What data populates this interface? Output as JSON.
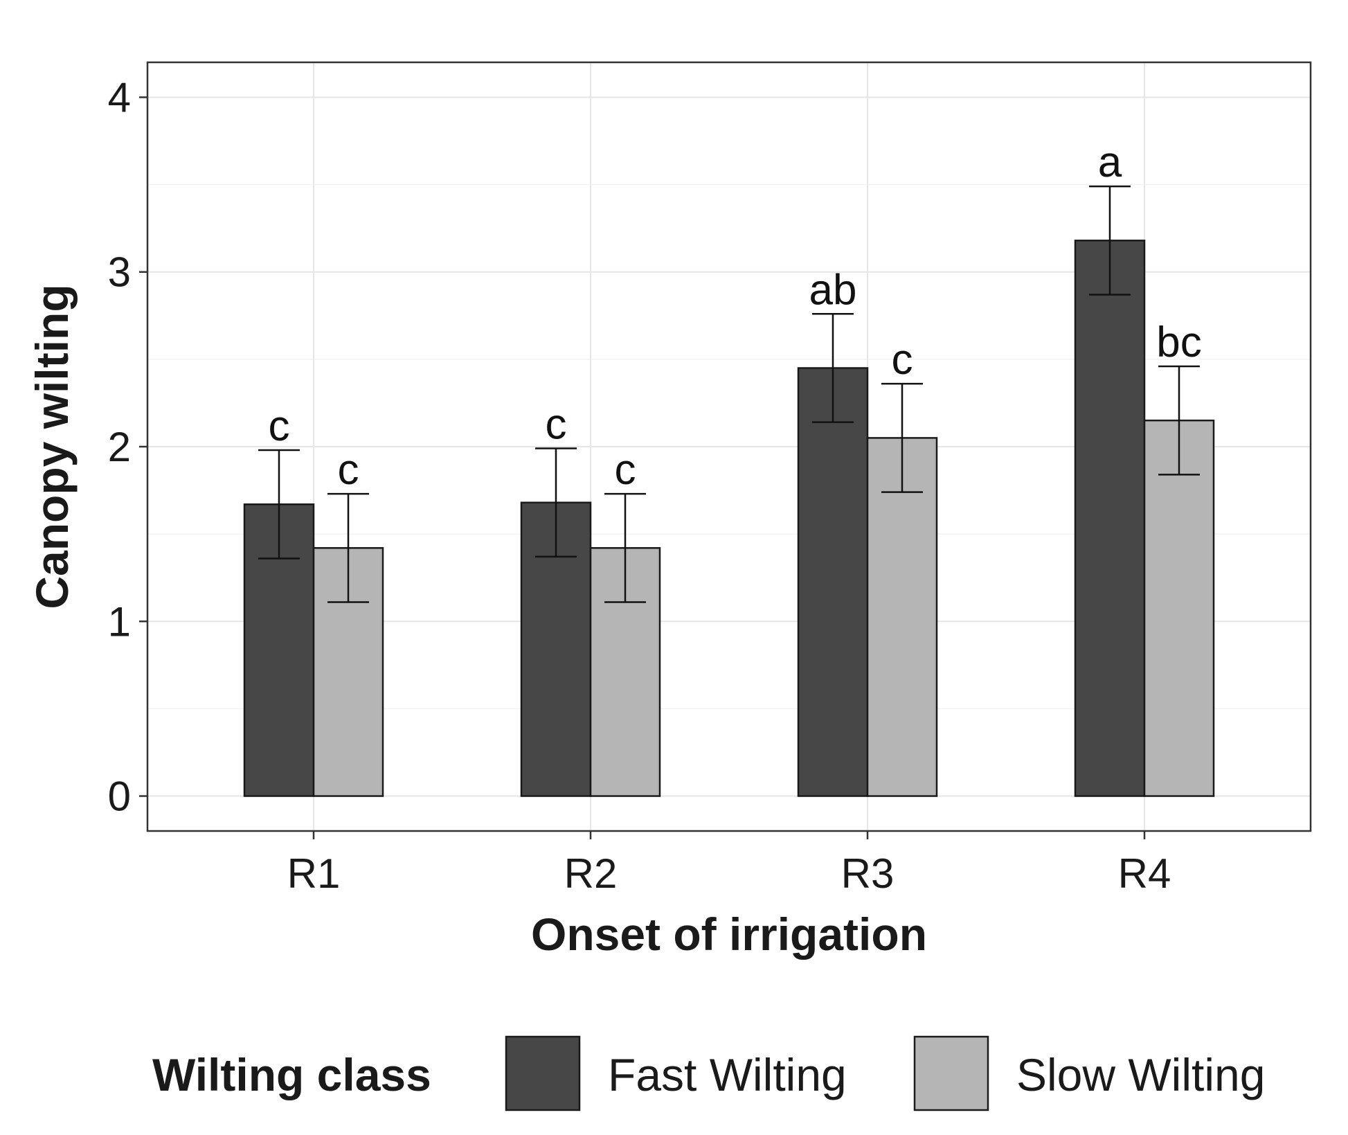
{
  "chart_data": {
    "type": "bar",
    "title": "",
    "xlabel": "Onset of irrigation",
    "ylabel": "Canopy wilting",
    "categories": [
      "R1",
      "R2",
      "R3",
      "R4"
    ],
    "ylim": [
      -0.2,
      4.2
    ],
    "yticks": [
      0,
      1,
      2,
      3,
      4
    ],
    "grid": true,
    "series": [
      {
        "name": "Fast Wilting",
        "color": "#474747",
        "values": [
          1.67,
          1.68,
          2.45,
          3.18
        ],
        "error": [
          0.31,
          0.31,
          0.31,
          0.31
        ],
        "labels": [
          "c",
          "c",
          "ab",
          "a"
        ]
      },
      {
        "name": "Slow Wilting",
        "color": "#b5b5b5",
        "values": [
          1.42,
          1.42,
          2.05,
          2.15
        ],
        "error": [
          0.31,
          0.31,
          0.31,
          0.31
        ],
        "labels": [
          "c",
          "c",
          "c",
          "bc"
        ]
      }
    ],
    "legend": {
      "title": "Wilting class",
      "position": "bottom"
    }
  }
}
